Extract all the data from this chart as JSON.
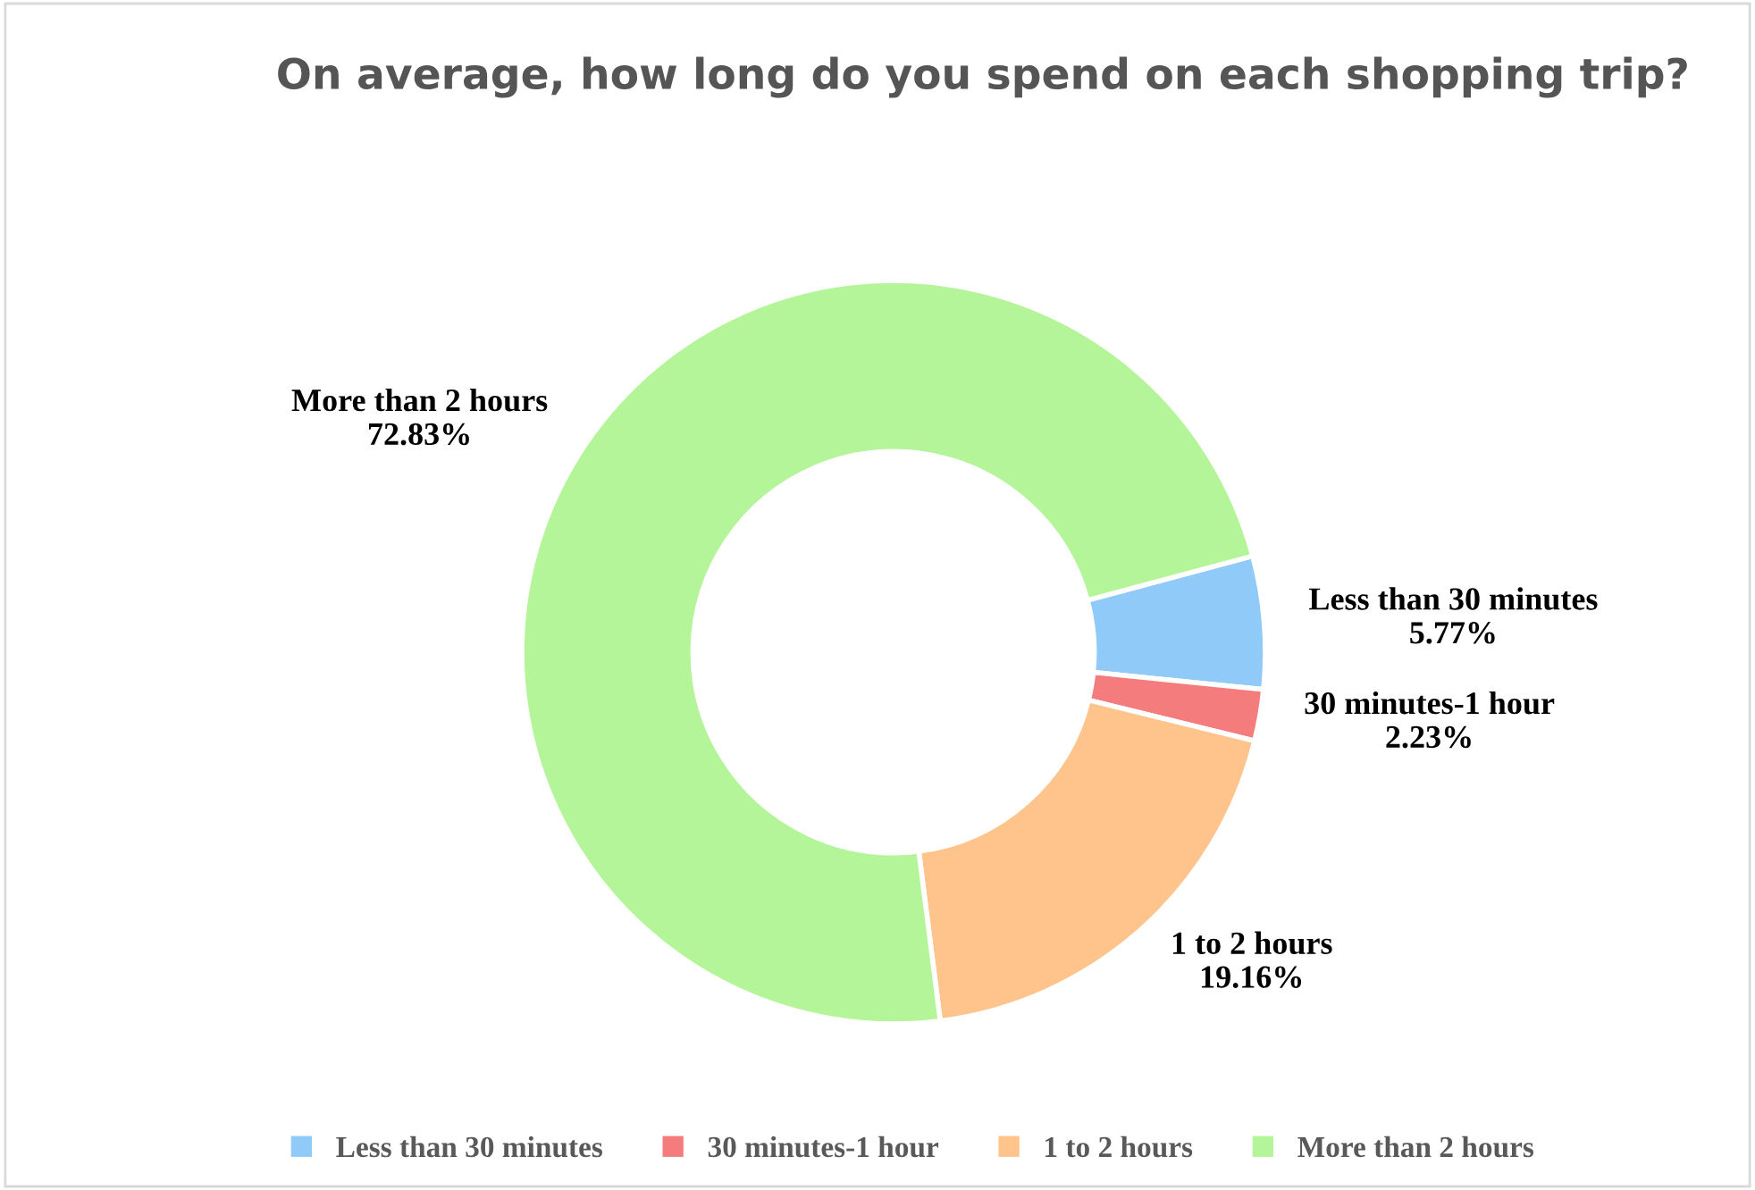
{
  "chart_data": {
    "type": "donut",
    "title": "On average, how long do you spend on each shopping trip?",
    "categories": [
      "Less than 30 minutes",
      "30 minutes-1 hour",
      "1 to 2 hours",
      "More than 2 hours"
    ],
    "values": [
      5.77,
      2.23,
      19.16,
      72.83
    ],
    "colors": [
      "#90caf9",
      "#f47c7c",
      "#ffc48c",
      "#b5f59a"
    ],
    "value_labels": [
      "5.77%",
      "2.23%",
      "19.16%",
      "72.83%"
    ],
    "legend": "bottom"
  }
}
